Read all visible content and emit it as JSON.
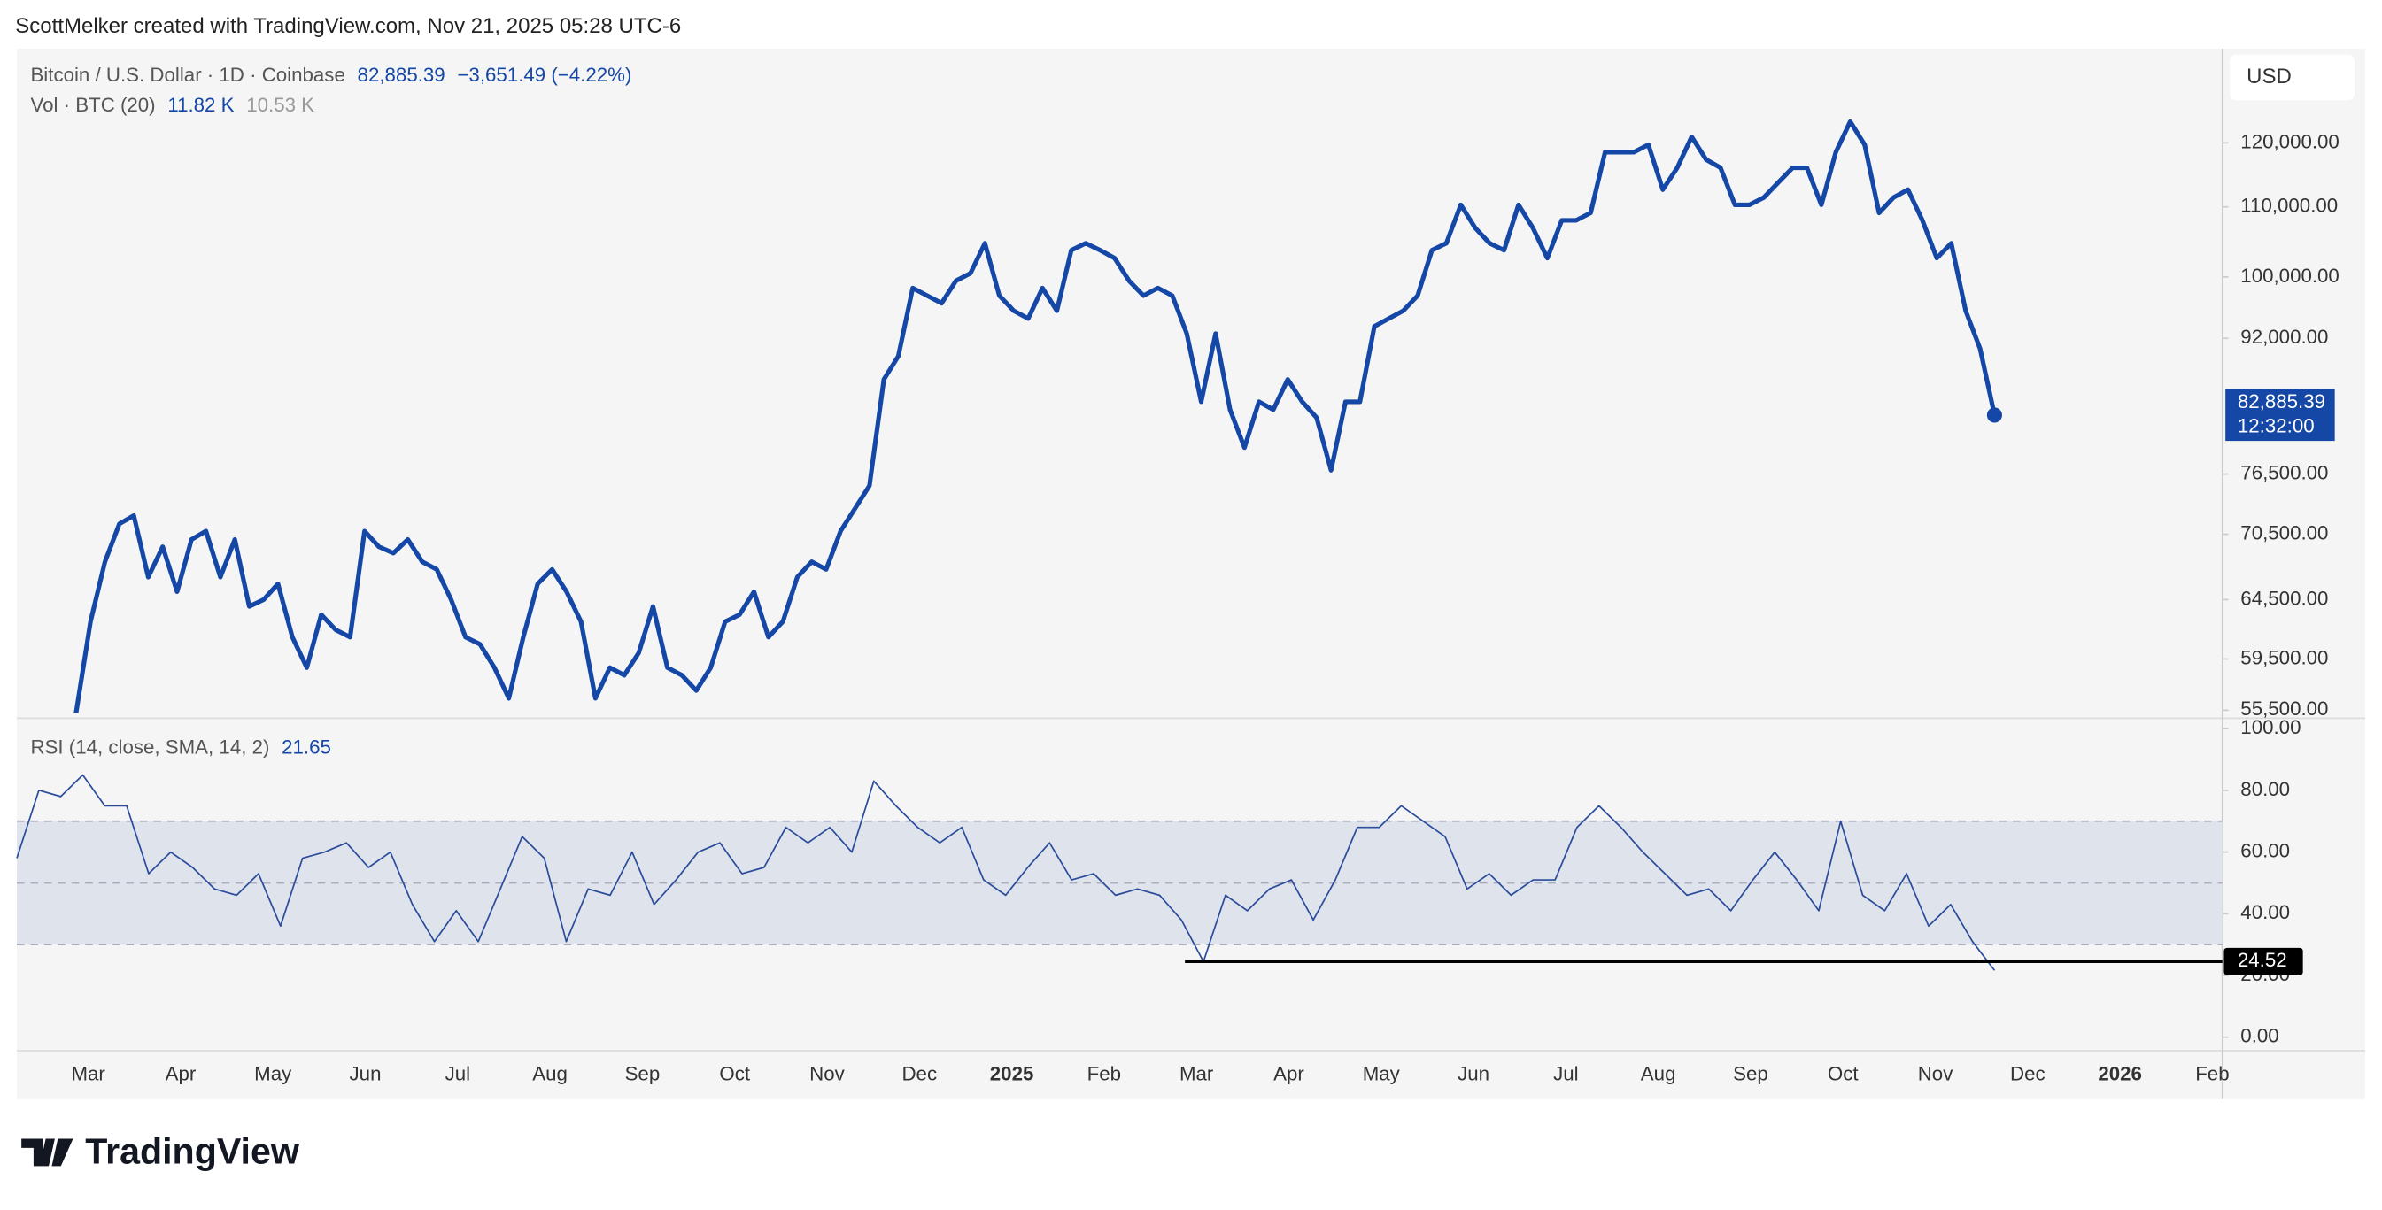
{
  "header": {
    "credit": "ScottMelker created with TradingView.com, Nov 21, 2025 05:28 UTC-6"
  },
  "footer": {
    "brand": "TradingView"
  },
  "currency": "USD",
  "time_axis": {
    "labels": [
      "Mar",
      "Apr",
      "May",
      "Jun",
      "Jul",
      "Aug",
      "Sep",
      "Oct",
      "Nov",
      "Dec",
      "2025",
      "Feb",
      "Mar",
      "Apr",
      "May",
      "Jun",
      "Jul",
      "Aug",
      "Sep",
      "Oct",
      "Nov",
      "Dec",
      "2026",
      "Feb"
    ]
  },
  "chart_data": [
    {
      "type": "line",
      "title": "Bitcoin / U.S. Dollar · 1D · Coinbase",
      "change": "−3,651.49 (−4.22%)",
      "volume_label": "Vol · BTC (20)",
      "volume_values": [
        "11.82 K",
        "10.53 K"
      ],
      "last_price": {
        "value": 82885.39,
        "label": "82,885.39"
      },
      "price_tag_time": "12:32:00",
      "log": true,
      "grid": false,
      "ylim": [
        54900,
        136400
      ],
      "yticks": [
        {
          "value": 55500,
          "label": "55,500.00"
        },
        {
          "value": 59500,
          "label": "59,500.00"
        },
        {
          "value": 64500,
          "label": "64,500.00"
        },
        {
          "value": 70500,
          "label": "70,500.00"
        },
        {
          "value": 76500,
          "label": "76,500.00"
        },
        {
          "value": 92000,
          "label": "92,000.00"
        },
        {
          "value": 100000,
          "label": "100,000.00"
        },
        {
          "value": 110000,
          "label": "110,000.00"
        },
        {
          "value": 120000,
          "label": "120,000.00"
        }
      ],
      "series": [
        {
          "name": "BTCUSD",
          "color": "#1447a6",
          "values": [
            55300,
            62600,
            67900,
            71500,
            72300,
            66500,
            69300,
            65200,
            70000,
            70800,
            66500,
            70000,
            63900,
            64500,
            65900,
            61300,
            58800,
            63200,
            61900,
            61300,
            70800,
            69300,
            68700,
            70000,
            67900,
            67200,
            64500,
            61300,
            60700,
            58800,
            56400,
            61300,
            65900,
            67200,
            65200,
            62600,
            56400,
            58800,
            58200,
            60000,
            63900,
            58800,
            58200,
            57000,
            58800,
            62600,
            63200,
            65200,
            61300,
            62600,
            66500,
            67900,
            67200,
            70800,
            73000,
            75300,
            87000,
            89800,
            98500,
            97500,
            96500,
            99500,
            100500,
            104700,
            97500,
            95500,
            94500,
            98500,
            95500,
            103700,
            104700,
            103700,
            102600,
            99500,
            97500,
            98500,
            97500,
            92600,
            84400,
            92600,
            83500,
            79300,
            84400,
            83500,
            87000,
            84400,
            82600,
            76900,
            84400,
            84400,
            93500,
            94500,
            95500,
            97500,
            103700,
            104700,
            110300,
            106900,
            104700,
            103700,
            110300,
            106900,
            102600,
            108000,
            108000,
            109100,
            118500,
            118500,
            118500,
            119700,
            112600,
            116000,
            121000,
            117300,
            116000,
            110300,
            110300,
            111400,
            113700,
            116000,
            116000,
            110300,
            118500,
            123500,
            119700,
            109100,
            111400,
            112600,
            108000,
            102600,
            104700,
            95500,
            90700,
            82885.39
          ]
        }
      ]
    },
    {
      "type": "line",
      "title": "RSI (14, close, SMA, 14, 2)",
      "grid": false,
      "ylim": [
        -4.4,
        103.4
      ],
      "yticks": [
        {
          "value": 0,
          "label": "0.00"
        },
        {
          "value": 20,
          "label": "20.00"
        },
        {
          "value": 40,
          "label": "40.00"
        },
        {
          "value": 60,
          "label": "60.00"
        },
        {
          "value": 80,
          "label": "80.00"
        },
        {
          "value": 100,
          "label": "100.00"
        }
      ],
      "levels": [
        30,
        50,
        70
      ],
      "band_color": "#dfe4ec",
      "hline": 24.52,
      "series": [
        {
          "name": "RSI",
          "color": "#2b4c9b",
          "values": [
            58,
            80,
            78,
            85,
            75,
            75,
            53,
            60,
            55,
            48,
            46,
            53,
            36,
            58,
            60,
            63,
            55,
            60,
            43,
            31,
            41,
            31,
            48,
            65,
            58,
            31,
            48,
            46,
            60,
            43,
            51,
            60,
            63,
            53,
            55,
            68,
            63,
            68,
            60,
            83,
            75,
            68,
            63,
            68,
            51,
            46,
            55,
            63,
            51,
            53,
            46,
            48,
            46,
            38,
            24.5,
            46,
            41,
            48,
            51,
            38,
            51,
            68,
            68,
            75,
            70,
            65,
            48,
            53,
            46,
            51,
            51,
            68,
            75,
            68,
            60,
            53,
            46,
            48,
            41,
            51,
            60,
            51,
            41,
            70,
            46,
            41,
            53,
            36,
            43,
            31,
            21.65
          ]
        }
      ]
    }
  ]
}
